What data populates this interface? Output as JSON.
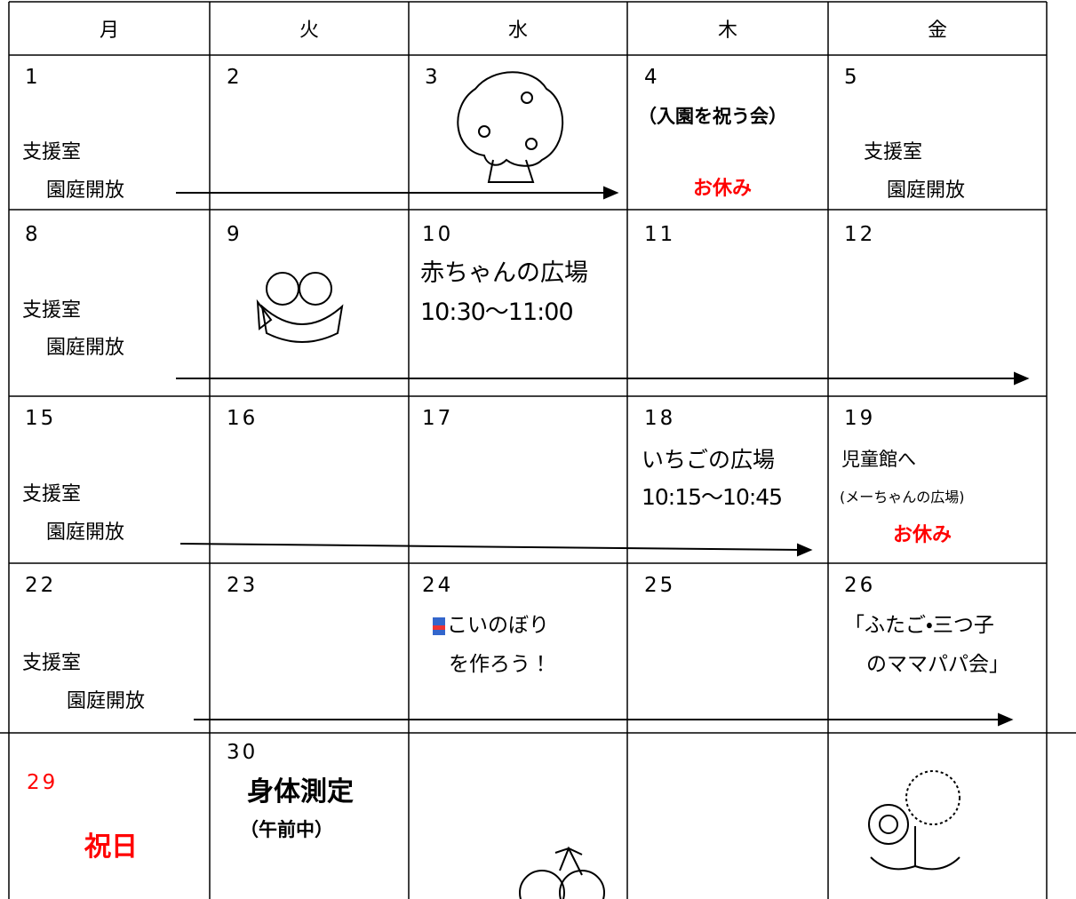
{
  "days": [
    "月",
    "火",
    "水",
    "木",
    "金"
  ],
  "weeks": [
    {
      "cells": [
        {
          "date": "1",
          "notes": [
            "支援室",
            "園庭開放"
          ]
        },
        {
          "date": "2"
        },
        {
          "date": "3"
        },
        {
          "date": "4",
          "notes": [
            "（入園を祝う会）",
            "お休み"
          ]
        },
        {
          "date": "5",
          "notes": [
            "支援室",
            "園庭開放"
          ]
        }
      ]
    },
    {
      "cells": [
        {
          "date": "8",
          "notes": [
            "支援室",
            "園庭開放"
          ]
        },
        {
          "date": "9"
        },
        {
          "date": "10",
          "notes": [
            "赤ちゃんの広場",
            "10:30～11:00"
          ]
        },
        {
          "date": "11"
        },
        {
          "date": "12"
        }
      ]
    },
    {
      "cells": [
        {
          "date": "15",
          "notes": [
            "支援室",
            "園庭開放"
          ]
        },
        {
          "date": "16"
        },
        {
          "date": "17"
        },
        {
          "date": "18",
          "notes": [
            "いちごの広場",
            "10:15～10:45"
          ]
        },
        {
          "date": "19",
          "notes": [
            "児童館へ",
            "(メーちゃんの広場)",
            "お休み"
          ]
        }
      ]
    },
    {
      "cells": [
        {
          "date": "22",
          "notes": [
            "支援室",
            "園庭開放"
          ]
        },
        {
          "date": "23"
        },
        {
          "date": "24",
          "notes": [
            "こいのぼり",
            "を作ろう！"
          ]
        },
        {
          "date": "25"
        },
        {
          "date": "26",
          "notes": [
            "「ふたご・三つ子",
            "のママパパ会」"
          ]
        }
      ]
    },
    {
      "cells": [
        {
          "date": "29",
          "notes": [
            "祝日"
          ]
        },
        {
          "date": "30",
          "notes": [
            "身体測定",
            "（午前中）"
          ]
        }
      ]
    }
  ]
}
